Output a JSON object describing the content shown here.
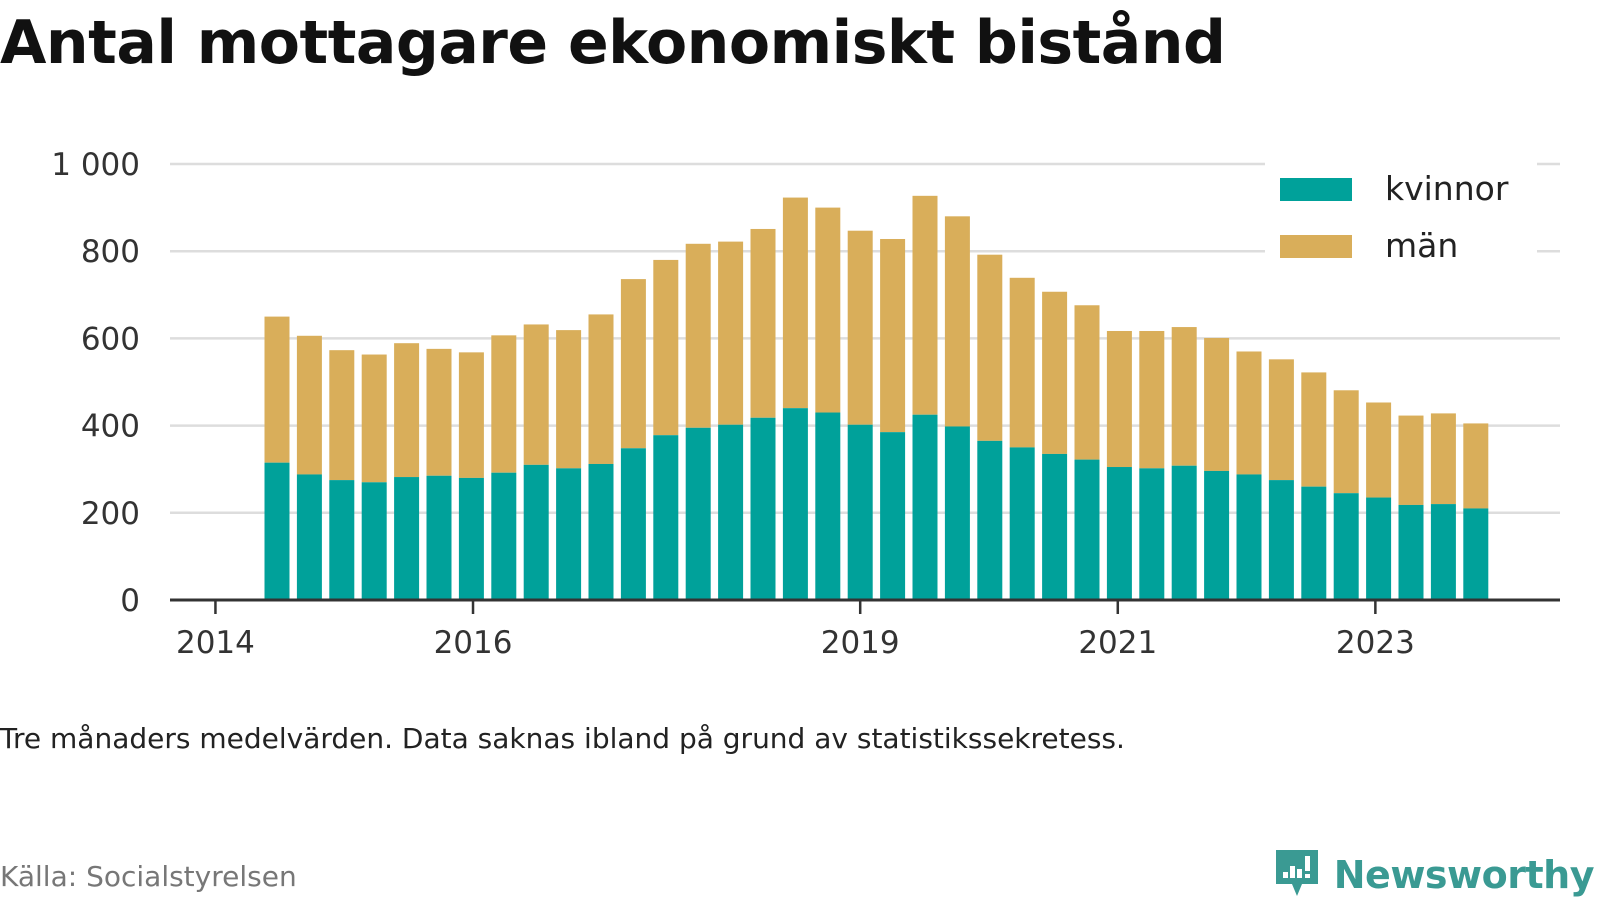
{
  "title": "Antal mottagare ekonomiskt bistånd",
  "note": "Tre månaders medelvärden. Data saknas ibland på grund av statistikssekretess.",
  "source": "Källa: Socialstyrelsen",
  "brand": {
    "name": "Newsworthy",
    "icon": "newsworthy-logo-icon"
  },
  "colors": {
    "kvinnor": "#00a19a",
    "man": "#d9ae5a",
    "grid": "#dddddd",
    "axis": "#333333"
  },
  "chart_data": {
    "type": "bar",
    "stacked": true,
    "title": "Antal mottagare ekonomiskt bistånd",
    "xlabel": "",
    "ylabel": "",
    "ylim": [
      0,
      1000
    ],
    "yticks": [
      0,
      200,
      400,
      600,
      800,
      1000
    ],
    "ytick_labels": [
      "0",
      "200",
      "400",
      "600",
      "800",
      "1 000"
    ],
    "xticks": [
      {
        "label": "2014",
        "position": -1.9
      },
      {
        "label": "2016",
        "position": 6.05
      },
      {
        "label": "2019",
        "position": 18.0
      },
      {
        "label": "2021",
        "position": 25.95
      },
      {
        "label": "2023",
        "position": 33.9
      }
    ],
    "grid": true,
    "legend_position": "top-right",
    "series": [
      {
        "name": "kvinnor",
        "values": [
          315,
          288,
          275,
          270,
          282,
          285,
          280,
          292,
          310,
          302,
          312,
          348,
          378,
          395,
          402,
          418,
          440,
          430,
          402,
          385,
          425,
          398,
          365,
          350,
          335,
          322,
          305,
          302,
          308,
          296,
          288,
          275,
          260,
          245,
          235,
          218,
          220,
          210
        ]
      },
      {
        "name": "män",
        "values": [
          335,
          318,
          298,
          293,
          307,
          291,
          288,
          315,
          322,
          317,
          343,
          388,
          402,
          422,
          420,
          433,
          483,
          470,
          445,
          443,
          502,
          482,
          427,
          389,
          372,
          354,
          312,
          315,
          318,
          305,
          282,
          277,
          262,
          236,
          218,
          205,
          208,
          195
        ]
      }
    ]
  }
}
